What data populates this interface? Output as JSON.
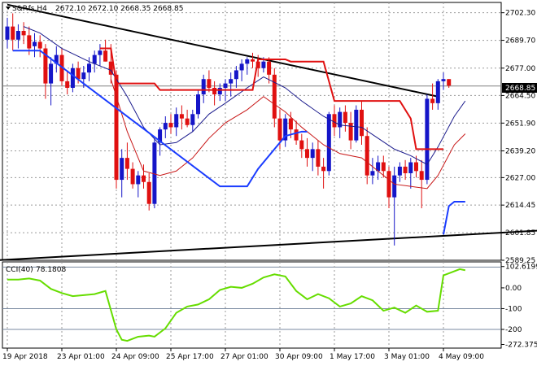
{
  "header": {
    "symbol": "S&P.fs,H4",
    "ohlc": "2672.10 2672.10 2668.35 2668.85"
  },
  "cci_label": {
    "name": "CCI(40)",
    "value": "78.1808"
  },
  "colors": {
    "bull": "#1515c8",
    "bear": "#e01010",
    "ma_slow": "#1a1a8c",
    "ma_fast": "#c81818",
    "stop_line": "#e01010",
    "support_line": "#1a3cff",
    "trendline": "#000000",
    "cci": "#66dd00",
    "current_price_line": "#808080"
  },
  "chart_data": [
    {
      "type": "candlestick",
      "title": "",
      "x_tick_labels": [
        "19 Apr 2018",
        "23 Apr 01:00",
        "24 Apr 09:00",
        "25 Apr 17:00",
        "27 Apr 01:00",
        "30 Apr 09:00",
        "1 May 17:00",
        "3 May 01:00",
        "4 May 09:00"
      ],
      "x_tick_index": [
        0,
        10,
        20,
        30,
        40,
        50,
        60,
        70,
        80
      ],
      "y_tick_labels": [
        "2702.30",
        "2689.70",
        "2677.00",
        "2664.50",
        "2651.90",
        "2639.20",
        "2627.00",
        "2614.45",
        "2601.85",
        "2589.25"
      ],
      "ylim": [
        2589.25,
        2707
      ],
      "current_price": "2668.85",
      "grid": true,
      "ohlc": [
        [
          2690,
          2700,
          2686,
          2696
        ],
        [
          2696,
          2702,
          2685,
          2690
        ],
        [
          2690,
          2697,
          2686,
          2694
        ],
        [
          2694,
          2698,
          2688,
          2692
        ],
        [
          2692,
          2696,
          2683,
          2686
        ],
        [
          2687,
          2693,
          2682,
          2689
        ],
        [
          2689,
          2692,
          2682,
          2686
        ],
        [
          2686,
          2688,
          2663,
          2670
        ],
        [
          2670,
          2682,
          2660,
          2679
        ],
        [
          2679,
          2687,
          2675,
          2683
        ],
        [
          2683,
          2686,
          2669,
          2671
        ],
        [
          2671,
          2676,
          2665,
          2668
        ],
        [
          2668,
          2679,
          2666,
          2677
        ],
        [
          2677,
          2680,
          2670,
          2672
        ],
        [
          2672,
          2678,
          2668,
          2675
        ],
        [
          2675,
          2682,
          2671,
          2679
        ],
        [
          2679,
          2685,
          2675,
          2683
        ],
        [
          2683,
          2688,
          2678,
          2685
        ],
        [
          2685,
          2690,
          2680,
          2680
        ],
        [
          2680,
          2688,
          2670,
          2674
        ],
        [
          2674,
          2676,
          2622,
          2626
        ],
        [
          2626,
          2640,
          2618,
          2636
        ],
        [
          2636,
          2643,
          2626,
          2631
        ],
        [
          2631,
          2634,
          2622,
          2624
        ],
        [
          2624,
          2630,
          2618,
          2628
        ],
        [
          2628,
          2633,
          2622,
          2625
        ],
        [
          2625,
          2629,
          2612,
          2615
        ],
        [
          2615,
          2645,
          2613,
          2643
        ],
        [
          2643,
          2650,
          2637,
          2649
        ],
        [
          2649,
          2655,
          2645,
          2652
        ],
        [
          2652,
          2656,
          2647,
          2650
        ],
        [
          2650,
          2659,
          2646,
          2656
        ],
        [
          2656,
          2660,
          2649,
          2654
        ],
        [
          2654,
          2658,
          2650,
          2651
        ],
        [
          2651,
          2658,
          2648,
          2656
        ],
        [
          2656,
          2667,
          2654,
          2665
        ],
        [
          2665,
          2674,
          2661,
          2672
        ],
        [
          2672,
          2676,
          2666,
          2668
        ],
        [
          2668,
          2671,
          2660,
          2665
        ],
        [
          2665,
          2670,
          2662,
          2668
        ],
        [
          2668,
          2672,
          2662,
          2670
        ],
        [
          2670,
          2675,
          2664,
          2672
        ],
        [
          2672,
          2678,
          2668,
          2676
        ],
        [
          2676,
          2681,
          2671,
          2679
        ],
        [
          2679,
          2682,
          2674,
          2681
        ],
        [
          2681,
          2684,
          2677,
          2680
        ],
        [
          2680,
          2683,
          2673,
          2677
        ],
        [
          2677,
          2682,
          2675,
          2680
        ],
        [
          2680,
          2682,
          2670,
          2674
        ],
        [
          2674,
          2677,
          2650,
          2654
        ],
        [
          2654,
          2658,
          2640,
          2644
        ],
        [
          2644,
          2656,
          2641,
          2654
        ],
        [
          2654,
          2657,
          2645,
          2649
        ],
        [
          2649,
          2653,
          2642,
          2644
        ],
        [
          2644,
          2647,
          2636,
          2640
        ],
        [
          2640,
          2645,
          2632,
          2636
        ],
        [
          2636,
          2643,
          2630,
          2640
        ],
        [
          2640,
          2644,
          2628,
          2632
        ],
        [
          2632,
          2636,
          2622,
          2630
        ],
        [
          2630,
          2657,
          2628,
          2656
        ],
        [
          2656,
          2660,
          2646,
          2650
        ],
        [
          2650,
          2659,
          2645,
          2657
        ],
        [
          2657,
          2660,
          2648,
          2652
        ],
        [
          2652,
          2657,
          2640,
          2644
        ],
        [
          2644,
          2660,
          2643,
          2658
        ],
        [
          2658,
          2662,
          2642,
          2646
        ],
        [
          2646,
          2650,
          2624,
          2628
        ],
        [
          2628,
          2636,
          2624,
          2630
        ],
        [
          2630,
          2637,
          2626,
          2634
        ],
        [
          2634,
          2637,
          2627,
          2630
        ],
        [
          2630,
          2632,
          2613,
          2618
        ],
        [
          2618,
          2632,
          2596,
          2628
        ],
        [
          2628,
          2634,
          2625,
          2632
        ],
        [
          2632,
          2635,
          2626,
          2629
        ],
        [
          2629,
          2636,
          2622,
          2634
        ],
        [
          2634,
          2637,
          2627,
          2630
        ],
        [
          2630,
          2635,
          2613,
          2626
        ],
        [
          2626,
          2665,
          2624,
          2663
        ],
        [
          2663,
          2670,
          2658,
          2661
        ],
        [
          2661,
          2672,
          2658,
          2671
        ],
        [
          2671,
          2675,
          2667,
          2672
        ],
        [
          2672,
          2672,
          2668,
          2669
        ]
      ],
      "ma_slow": [
        [
          3,
          2696
        ],
        [
          6,
          2693
        ],
        [
          10,
          2686
        ],
        [
          15,
          2680
        ],
        [
          19,
          2676
        ],
        [
          22,
          2664
        ],
        [
          25,
          2650
        ],
        [
          28,
          2642
        ],
        [
          31,
          2643
        ],
        [
          34,
          2648
        ],
        [
          37,
          2656
        ],
        [
          40,
          2661
        ],
        [
          44,
          2668
        ],
        [
          47,
          2673
        ],
        [
          51,
          2668
        ],
        [
          54,
          2662
        ],
        [
          58,
          2655
        ],
        [
          61,
          2651
        ],
        [
          65,
          2650
        ],
        [
          68,
          2645
        ],
        [
          71,
          2640
        ],
        [
          74,
          2637
        ],
        [
          77,
          2633
        ],
        [
          79,
          2641
        ],
        [
          82,
          2655
        ],
        [
          84,
          2662
        ]
      ],
      "ma_fast": [
        [
          19,
          2672
        ],
        [
          22,
          2648
        ],
        [
          25,
          2630
        ],
        [
          28,
          2628
        ],
        [
          31,
          2630
        ],
        [
          34,
          2636
        ],
        [
          37,
          2645
        ],
        [
          40,
          2652
        ],
        [
          44,
          2658
        ],
        [
          47,
          2664
        ],
        [
          51,
          2657
        ],
        [
          54,
          2650
        ],
        [
          58,
          2642
        ],
        [
          61,
          2638
        ],
        [
          65,
          2636
        ],
        [
          68,
          2630
        ],
        [
          71,
          2624
        ],
        [
          74,
          2623
        ],
        [
          77,
          2622
        ],
        [
          79,
          2628
        ],
        [
          82,
          2642
        ],
        [
          84,
          2647
        ]
      ],
      "stop_line": [
        [
          17,
          2686
        ],
        [
          19,
          2686
        ],
        [
          20,
          2670
        ],
        [
          27,
          2670
        ],
        [
          28,
          2667
        ],
        [
          45,
          2667
        ],
        [
          46,
          2681
        ],
        [
          51,
          2681
        ],
        [
          52,
          2680
        ],
        [
          58,
          2680
        ],
        [
          60,
          2662
        ],
        [
          72,
          2662
        ],
        [
          74,
          2654
        ],
        [
          75,
          2640
        ],
        [
          80,
          2640
        ]
      ],
      "support_line": [
        [
          1,
          2685
        ],
        [
          6,
          2685
        ],
        [
          39,
          2623
        ],
        [
          44,
          2623
        ],
        [
          46,
          2631
        ],
        [
          51,
          2646
        ],
        [
          54,
          2648
        ],
        [
          55,
          2648
        ],
        null,
        [
          80,
          2601
        ],
        [
          81,
          2614
        ],
        [
          82,
          2616
        ],
        [
          84,
          2616
        ]
      ],
      "trendlines": [
        {
          "from": [
            0,
            2706
          ],
          "to": [
            79,
            2664
          ]
        },
        {
          "from": [
            -4,
            2589
          ],
          "to": [
            99,
            2603
          ]
        }
      ]
    },
    {
      "type": "line",
      "title": "",
      "indicator": "CCI(40)",
      "y_tick_labels": [
        "102.6199",
        "0.00",
        "-100",
        "-200",
        "-272.3754"
      ],
      "ylim": [
        -290,
        125
      ],
      "levels": [
        100,
        -100,
        -200
      ],
      "x": [
        0,
        2,
        4,
        6,
        8,
        10,
        12,
        14,
        16,
        18,
        20,
        21,
        22,
        24,
        26,
        27,
        29,
        31,
        33,
        35,
        37,
        39,
        41,
        43,
        45,
        47,
        49,
        51,
        53,
        55,
        57,
        59,
        61,
        63,
        65,
        67,
        69,
        71,
        73,
        75,
        77,
        79,
        80,
        81,
        83,
        84
      ],
      "values": [
        40,
        40,
        45,
        35,
        -5,
        -25,
        -40,
        -35,
        -30,
        -15,
        -200,
        -250,
        -255,
        -235,
        -230,
        -235,
        -195,
        -120,
        -90,
        -80,
        -55,
        -10,
        5,
        0,
        20,
        50,
        65,
        55,
        -15,
        -55,
        -30,
        -50,
        -90,
        -75,
        -40,
        -60,
        -110,
        -95,
        -120,
        -85,
        -115,
        -110,
        60,
        70,
        90,
        85
      ]
    }
  ]
}
